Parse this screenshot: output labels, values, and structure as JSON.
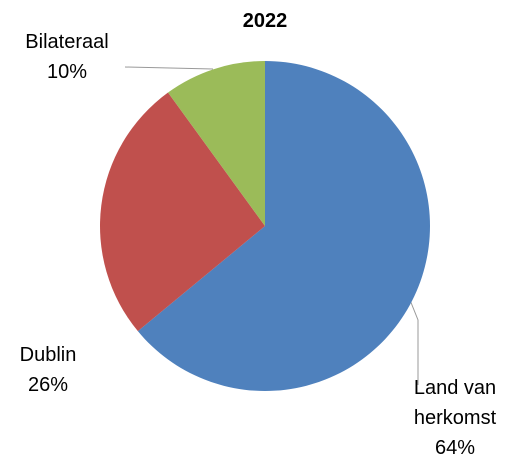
{
  "chart_data": {
    "type": "pie",
    "title": "2022",
    "categories": [
      "Land van herkomst",
      "Dublin",
      "Bilateraal"
    ],
    "values": [
      64,
      26,
      10
    ],
    "value_labels": [
      "64%",
      "26%",
      "10%"
    ],
    "colors": [
      "#4f81bd",
      "#c0504d",
      "#9bbb59"
    ]
  }
}
